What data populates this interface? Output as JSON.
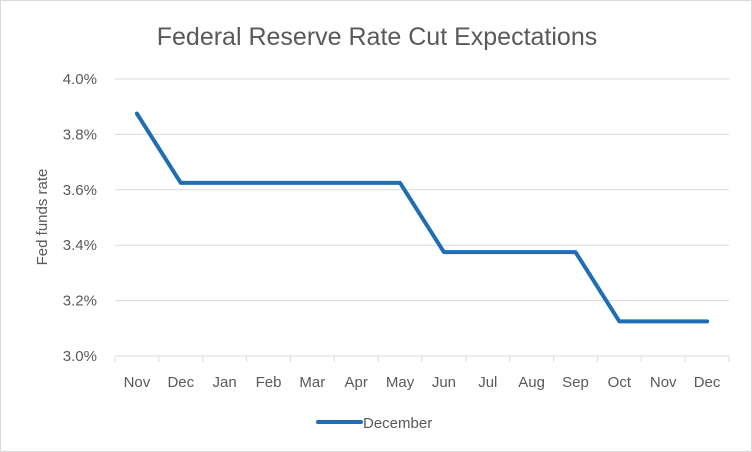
{
  "chart_data": {
    "type": "line",
    "title": "Federal Reserve Rate Cut Expectations",
    "xlabel": "",
    "ylabel": "Fed funds rate",
    "categories": [
      "Nov",
      "Dec",
      "Jan",
      "Feb",
      "Mar",
      "Apr",
      "May",
      "Jun",
      "Jul",
      "Aug",
      "Sep",
      "Oct",
      "Nov",
      "Dec"
    ],
    "y_ticks": [
      3.0,
      3.2,
      3.4,
      3.6,
      3.8,
      4.0
    ],
    "y_tick_labels": [
      "3.0%",
      "3.2%",
      "3.4%",
      "3.6%",
      "3.8%",
      "4.0%"
    ],
    "ylim": [
      3.0,
      4.0
    ],
    "grid": true,
    "legend_position": "bottom",
    "series": [
      {
        "name": "December",
        "color": "#1f6db5",
        "values": [
          3.875,
          3.625,
          3.625,
          3.625,
          3.625,
          3.625,
          3.625,
          3.375,
          3.375,
          3.375,
          3.375,
          3.125,
          3.125,
          3.125
        ]
      }
    ]
  }
}
